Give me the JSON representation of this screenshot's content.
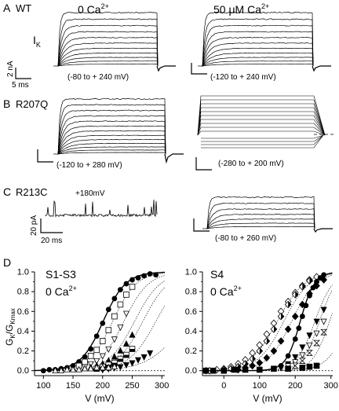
{
  "panels": {
    "A": {
      "letter": "A",
      "name": "WT",
      "current": "I",
      "current_sub": "K",
      "cond_left": "0 Ca",
      "cond_right": "50 μM Ca",
      "sup": "2+",
      "range_left": "(-80 to + 240 mV)",
      "range_right": "(-120  to + 240 mV)",
      "scale_y": "2 nA",
      "scale_x": "5 ms"
    },
    "B": {
      "letter": "B",
      "name": "R207Q",
      "range_left": "(-120 to + 280 mV)",
      "range_right": "(-280 to + 200 mV)"
    },
    "C": {
      "letter": "C",
      "name": "R213C",
      "voltage": "+180mV",
      "scale_y": "20 pA",
      "scale_x": "20 ms",
      "range_right": "(-80 to + 260 mV)"
    },
    "D": {
      "letter": "D"
    }
  },
  "chart_data": [
    {
      "type": "scatter",
      "title": "S1-S3",
      "subtitle": "0 Ca",
      "subtitle_sup": "2+",
      "xlabel": "V (mV)",
      "ylabel": "G",
      "ylabel_sub": "K",
      "ylabel_rest": "/G",
      "ylabel_sub2": "Kmax",
      "xlim": [
        85,
        305
      ],
      "ylim": [
        -0.05,
        1.0
      ],
      "xticks": [
        "100",
        "150",
        "200",
        "250",
        "300"
      ],
      "yticks": [
        "0.0",
        "0.2",
        "0.4",
        "0.6",
        "0.8",
        "1.0"
      ],
      "grid": false,
      "series": [
        {
          "marker": "filled-circle",
          "half": 201,
          "slope": 19,
          "fit": "solid",
          "x": [
            100,
            110,
            120,
            130,
            140,
            150,
            160,
            170,
            180,
            190,
            200,
            210,
            220,
            230,
            240,
            250,
            260,
            270,
            280,
            290
          ],
          "y": [
            0.0,
            0.01,
            0.01,
            0.02,
            0.03,
            0.05,
            0.09,
            0.14,
            0.22,
            0.35,
            0.48,
            0.62,
            0.73,
            0.82,
            0.88,
            0.92,
            0.94,
            0.96,
            0.98,
            0.97
          ]
        },
        {
          "marker": "open-square",
          "half": 217,
          "slope": 20,
          "fit": "dotted",
          "x": [
            160,
            170,
            180,
            190,
            200,
            210,
            220,
            230,
            240,
            250
          ],
          "y": [
            0.05,
            0.09,
            0.15,
            0.21,
            0.3,
            0.41,
            0.55,
            0.67,
            0.77,
            0.85
          ]
        },
        {
          "marker": "open-triangle-down",
          "half": 236,
          "slope": 21,
          "fit": "dotted",
          "x": [
            170,
            180,
            190,
            200,
            210,
            220,
            230,
            240
          ],
          "y": [
            0.04,
            0.07,
            0.1,
            0.15,
            0.22,
            0.32,
            0.44,
            0.58
          ]
        },
        {
          "marker": "filled-triangle-up",
          "half": 254,
          "slope": 22,
          "fit": "dotted",
          "x": [
            180,
            190,
            200,
            210,
            220,
            230,
            240,
            250
          ],
          "y": [
            0.03,
            0.05,
            0.07,
            0.1,
            0.14,
            0.2,
            0.27,
            0.36
          ]
        },
        {
          "marker": "half-square",
          "half": 268,
          "slope": 22,
          "fit": "dotted",
          "x": [
            190,
            200,
            210,
            220,
            230,
            240,
            250
          ],
          "y": [
            0.02,
            0.04,
            0.06,
            0.08,
            0.12,
            0.16,
            0.22
          ]
        },
        {
          "marker": "filled-triangle-down",
          "half": 290,
          "slope": 23,
          "fit": "dotted",
          "x": [
            200,
            210,
            220,
            230,
            240,
            250,
            260,
            270,
            280
          ],
          "y": [
            0.01,
            0.02,
            0.03,
            0.04,
            0.06,
            0.08,
            0.11,
            0.14,
            0.18
          ]
        },
        {
          "marker": "open-triangle-up",
          "half": 340,
          "slope": 30,
          "fit": "dotted",
          "x": [
            120,
            130,
            140,
            150,
            160,
            170,
            180,
            190,
            200,
            210,
            220
          ],
          "y": [
            0.0,
            0.0,
            0.01,
            0.01,
            0.01,
            0.02,
            0.02,
            0.03,
            0.03,
            0.03,
            0.04
          ]
        }
      ]
    },
    {
      "type": "scatter",
      "title": "S4",
      "subtitle": "0 Ca",
      "subtitle_sup": "2+",
      "xlabel": "V (mV)",
      "xlim": [
        -60,
        305
      ],
      "ylim": [
        -0.05,
        1.0
      ],
      "xticks": [
        "0",
        "100",
        "200",
        "300"
      ],
      "yticks": [
        "0.0",
        "0.2",
        "0.4",
        "0.6",
        "0.8",
        "1.0"
      ],
      "grid": false,
      "series": [
        {
          "marker": "open-diamond",
          "half": 150,
          "slope": 38,
          "fit": "dotted",
          "x": [
            -50,
            -40,
            -20,
            0,
            20,
            40,
            60,
            80,
            100,
            120,
            140,
            160,
            180,
            200,
            220,
            240,
            260
          ],
          "y": [
            0.0,
            0.0,
            0.01,
            0.02,
            0.04,
            0.07,
            0.11,
            0.18,
            0.26,
            0.37,
            0.48,
            0.6,
            0.7,
            0.79,
            0.86,
            0.92,
            0.95
          ]
        },
        {
          "marker": "half-diamond",
          "half": 168,
          "slope": 36,
          "fit": "dotted",
          "x": [
            0,
            20,
            40,
            60,
            80,
            100,
            120,
            140,
            160,
            180,
            200,
            220,
            240
          ],
          "y": [
            0.01,
            0.02,
            0.04,
            0.07,
            0.12,
            0.2,
            0.3,
            0.42,
            0.55,
            0.67,
            0.77,
            0.85,
            0.91
          ]
        },
        {
          "marker": "filled-diamond",
          "half": 190,
          "slope": 34,
          "fit": "dotted",
          "x": [
            40,
            60,
            80,
            100,
            120,
            140,
            160,
            180,
            200,
            220,
            240,
            260,
            280
          ],
          "y": [
            0.01,
            0.03,
            0.05,
            0.08,
            0.13,
            0.2,
            0.3,
            0.42,
            0.55,
            0.67,
            0.78,
            0.86,
            0.92
          ]
        },
        {
          "marker": "filled-circle",
          "half": 214,
          "slope": 20,
          "fit": "solid",
          "x": [
            140,
            160,
            180,
            200,
            210,
            220,
            230,
            240,
            250,
            260,
            270,
            280
          ],
          "y": [
            0.02,
            0.05,
            0.15,
            0.32,
            0.43,
            0.55,
            0.66,
            0.76,
            0.84,
            0.9,
            0.94,
            0.97
          ]
        },
        {
          "marker": "filled-triangle-down",
          "half": 255,
          "slope": 26,
          "fit": "dotted",
          "x": [
            160,
            180,
            200,
            220,
            240,
            260,
            280
          ],
          "y": [
            0.03,
            0.07,
            0.14,
            0.24,
            0.36,
            0.5,
            0.62
          ]
        },
        {
          "marker": "open-triangle-down",
          "half": 268,
          "slope": 24,
          "fit": "dotted",
          "x": [
            180,
            200,
            220,
            240,
            260,
            280
          ],
          "y": [
            0.05,
            0.09,
            0.16,
            0.26,
            0.38,
            0.5
          ]
        },
        {
          "marker": "hourglass",
          "half": 296,
          "slope": 24,
          "fit": "dotted",
          "x": [
            200,
            220,
            240,
            260,
            280
          ],
          "y": [
            0.05,
            0.1,
            0.18,
            0.28,
            0.39
          ]
        },
        {
          "marker": "filled-square",
          "half": 350,
          "slope": 30,
          "fit": "dotted",
          "x": [
            -50,
            -30,
            0,
            30,
            60,
            100,
            140,
            180,
            220,
            240,
            260
          ],
          "y": [
            0.0,
            0.0,
            0.0,
            0.01,
            0.01,
            0.01,
            0.02,
            0.02,
            0.03,
            0.04,
            0.05
          ]
        }
      ]
    }
  ]
}
